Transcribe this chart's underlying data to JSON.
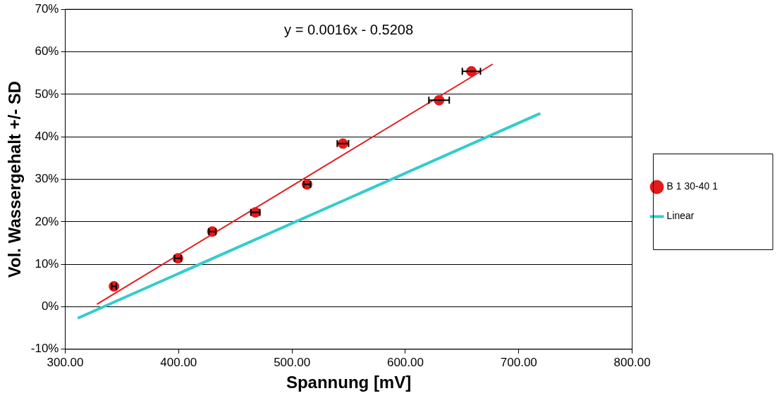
{
  "chart_data": {
    "type": "scatter",
    "xlabel": "Spannung [mV]",
    "ylabel": "Vol. Wassergehalt +/- SD",
    "annotations": [
      "y = 0.0016x - 0.5208"
    ],
    "series": [
      {
        "name": "B 1 30-40 1",
        "type": "scatter",
        "color": "#e31a1c",
        "marker": "circle",
        "x": [
          343,
          399.4,
          429.7,
          467.7,
          513.3,
          544.9,
          629.7,
          658.2
        ],
        "values": [
          4.8,
          11.4,
          17.7,
          22.2,
          28.8,
          38.4,
          48.6,
          55.4
        ],
        "xerrors": [
          2,
          3,
          3,
          4,
          3,
          5,
          9,
          8
        ]
      },
      {
        "type": "line",
        "color": "#e31a1c",
        "marker": "none",
        "x": [
          328,
          677
        ],
        "values": [
          0.6,
          57.1
        ]
      },
      {
        "name": "Linear",
        "type": "line",
        "color": "#33cccc",
        "marker": "none",
        "x": [
          311,
          719
        ],
        "values": [
          -2.7,
          45.5
        ]
      }
    ],
    "xlim": [
      300,
      800
    ],
    "xticks": [
      {
        "value": 300,
        "label": "300.00"
      },
      {
        "value": 400,
        "label": "400.00"
      },
      {
        "value": 500,
        "label": "500.00"
      },
      {
        "value": 600,
        "label": "600.00"
      },
      {
        "value": 700,
        "label": "700.00"
      },
      {
        "value": 800,
        "label": "800.00"
      }
    ],
    "ylim": [
      -10,
      70
    ],
    "yticks": [
      {
        "value": -10,
        "label": "-10%"
      },
      {
        "value": 0,
        "label": "0%"
      },
      {
        "value": 10,
        "label": "10%"
      },
      {
        "value": 20,
        "label": "20%"
      },
      {
        "value": 30,
        "label": "30%"
      },
      {
        "value": 40,
        "label": "40%"
      },
      {
        "value": 50,
        "label": "50%"
      },
      {
        "value": 60,
        "label": "60%"
      },
      {
        "value": 70,
        "label": "70%"
      }
    ],
    "grid": "y",
    "legend": "right"
  }
}
